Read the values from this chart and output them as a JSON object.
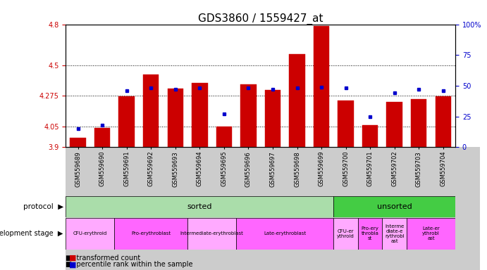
{
  "title": "GDS3860 / 1559427_at",
  "samples": [
    "GSM559689",
    "GSM559690",
    "GSM559691",
    "GSM559692",
    "GSM559693",
    "GSM559694",
    "GSM559695",
    "GSM559696",
    "GSM559697",
    "GSM559698",
    "GSM559699",
    "GSM559700",
    "GSM559701",
    "GSM559702",
    "GSM559703",
    "GSM559704"
  ],
  "bar_values": [
    3.97,
    4.04,
    4.27,
    4.43,
    4.33,
    4.37,
    4.05,
    4.36,
    4.32,
    4.58,
    4.79,
    4.24,
    4.06,
    4.23,
    4.25,
    4.27
  ],
  "percentile_values": [
    15,
    18,
    46,
    48,
    47,
    48,
    27,
    48,
    47,
    48,
    49,
    48,
    25,
    44,
    47,
    46
  ],
  "y_min": 3.9,
  "y_max": 4.8,
  "y_ticks": [
    3.9,
    4.05,
    4.275,
    4.5,
    4.8
  ],
  "y_tick_labels": [
    "3.9",
    "4.05",
    "4.275",
    "4.5",
    "4.8"
  ],
  "right_y_ticks": [
    0,
    25,
    50,
    75,
    100
  ],
  "right_y_tick_labels": [
    "0",
    "25",
    "50",
    "75",
    "100%"
  ],
  "bar_color": "#cc0000",
  "dot_color": "#0000cc",
  "bar_bottom": 3.9,
  "sorted_n": 11,
  "sorted_color": "#aaddaa",
  "unsorted_color": "#44cc44",
  "sorted_label": "sorted",
  "unsorted_label": "unsorted",
  "dev_groups": [
    {
      "label": "CFU-erythroid",
      "start": 0,
      "end": 2,
      "color": "#ffaaff"
    },
    {
      "label": "Pro-erythroblast",
      "start": 2,
      "end": 5,
      "color": "#ff66ff"
    },
    {
      "label": "Intermediate-erythroblast",
      "start": 5,
      "end": 7,
      "color": "#ffaaff"
    },
    {
      "label": "Late-erythroblast",
      "start": 7,
      "end": 11,
      "color": "#ff66ff"
    },
    {
      "label": "CFU-er\nythroid",
      "start": 11,
      "end": 12,
      "color": "#ffaaff"
    },
    {
      "label": "Pro-ery\nthrobla\nst",
      "start": 12,
      "end": 13,
      "color": "#ff66ff"
    },
    {
      "label": "Interme\ndiate-e\nrythrobl\nast",
      "start": 13,
      "end": 14,
      "color": "#ffaaff"
    },
    {
      "label": "Late-er\nythrobl\nast",
      "start": 14,
      "end": 16,
      "color": "#ff66ff"
    }
  ],
  "axis_color_left": "#cc0000",
  "axis_color_right": "#0000cc",
  "tick_fontsize": 7,
  "sample_fontsize": 6,
  "title_fontsize": 11
}
